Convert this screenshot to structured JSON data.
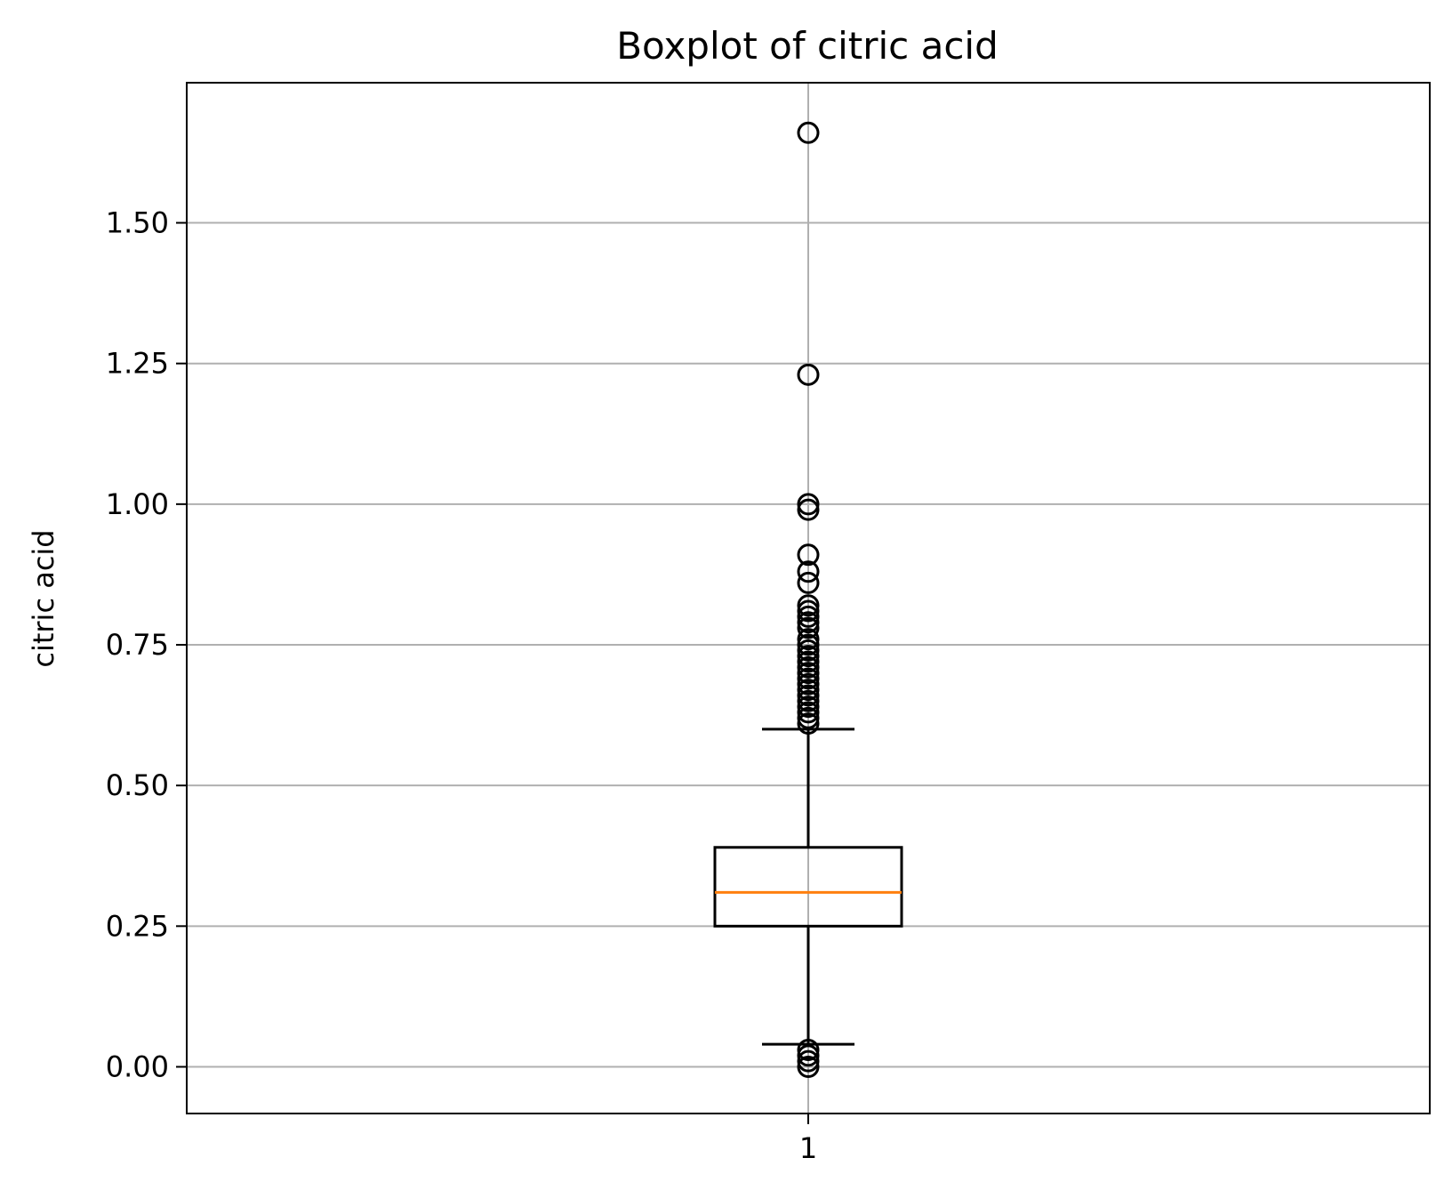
{
  "chart_data": {
    "type": "box",
    "title": "Boxplot of citric acid",
    "ylabel": "citric acid",
    "xlabel": "",
    "ylim": [
      -0.083,
      1.749
    ],
    "y_ticks": [
      0.0,
      0.25,
      0.5,
      0.75,
      1.0,
      1.25,
      1.5
    ],
    "y_tick_labels": [
      "0.00",
      "0.25",
      "0.50",
      "0.75",
      "1.00",
      "1.25",
      "1.50"
    ],
    "x_tick_labels": [
      "1"
    ],
    "grid": true,
    "box": {
      "position": 1,
      "q1": 0.25,
      "median": 0.31,
      "q3": 0.39,
      "whisker_low": 0.04,
      "whisker_high": 0.6,
      "outliers": [
        1.66,
        1.23,
        1.0,
        0.99,
        0.91,
        0.88,
        0.86,
        0.82,
        0.81,
        0.8,
        0.79,
        0.78,
        0.76,
        0.75,
        0.74,
        0.73,
        0.72,
        0.71,
        0.7,
        0.69,
        0.68,
        0.67,
        0.66,
        0.65,
        0.64,
        0.63,
        0.62,
        0.61,
        0.03,
        0.02,
        0.01,
        0.0
      ]
    },
    "colors": {
      "box": "#000000",
      "median": "#ff7f0e",
      "grid": "#b0b0b0",
      "outlier": "#000000"
    }
  }
}
